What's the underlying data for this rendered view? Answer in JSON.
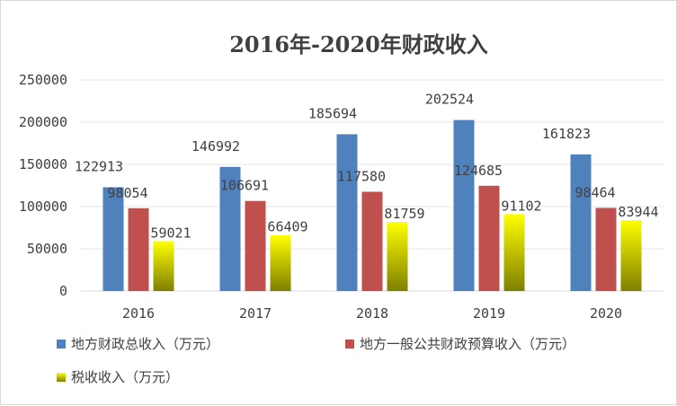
{
  "chart_data": {
    "type": "bar",
    "title": "2016年-2020年财政收入",
    "categories": [
      "2016",
      "2017",
      "2018",
      "2019",
      "2020"
    ],
    "series": [
      {
        "name": "地方财政总收入（万元）",
        "values": [
          122913,
          146992,
          185694,
          202524,
          161823
        ],
        "color": "#4f81bd"
      },
      {
        "name": "地方一般公共财政预算收入（万元）",
        "values": [
          98054,
          106691,
          117580,
          124685,
          98464
        ],
        "color": "#c0504d"
      },
      {
        "name": "税收收入（万元）",
        "values": [
          59021,
          66409,
          81759,
          91102,
          83944
        ],
        "color_top": "#ffff00",
        "color_bottom": "#7f7f00"
      }
    ],
    "ylim": [
      0,
      250000
    ],
    "yticks": [
      0,
      50000,
      100000,
      150000,
      200000,
      250000
    ],
    "grid": true,
    "legend_position": "bottom",
    "xlabel": "",
    "ylabel": ""
  }
}
